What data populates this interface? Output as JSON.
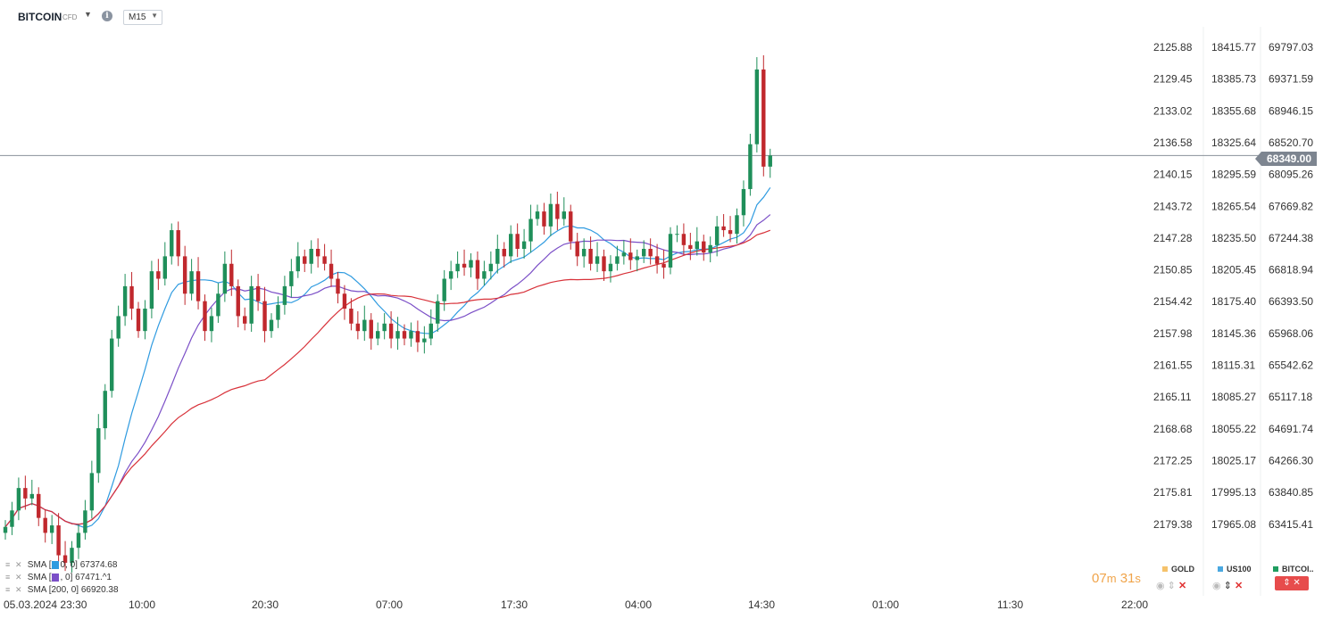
{
  "header": {
    "symbol": "BITCOIN",
    "symbol_type": "CFD",
    "timeframe": "M15"
  },
  "price_axis": {
    "col1": [
      "2125.88",
      "2129.45",
      "2133.02",
      "2136.58",
      "2140.15",
      "2143.72",
      "2147.28",
      "2150.85",
      "2154.42",
      "2157.98",
      "2161.55",
      "2165.11",
      "2168.68",
      "2172.25",
      "2175.81",
      "2179.38"
    ],
    "col2": [
      "18415.77",
      "18385.73",
      "18355.68",
      "18325.64",
      "18295.59",
      "18265.54",
      "18235.50",
      "18205.45",
      "18175.40",
      "18145.36",
      "18115.31",
      "18085.27",
      "18055.22",
      "18025.17",
      "17995.13",
      "17965.08"
    ],
    "col3": [
      "69797.03",
      "69371.59",
      "68946.15",
      "68520.70",
      "68095.26",
      "67669.82",
      "67244.38",
      "66818.94",
      "66393.50",
      "65968.06",
      "65542.62",
      "65117.18",
      "64691.74",
      "64266.30",
      "63840.85",
      "63415.41"
    ],
    "current_price": "68349.00"
  },
  "time_axis": [
    "05.03.2024  23:30",
    "10:00",
    "20:30",
    "07:00",
    "17:30",
    "04:00",
    "14:30",
    "01:00",
    "11:30",
    "22:00"
  ],
  "legend": [
    {
      "label": "SMA",
      "params": "[",
      "value": "67374.68"
    },
    {
      "label": "SMA",
      "params": "[",
      "value": "67471.^1"
    },
    {
      "label": "SMA",
      "params": "[200,  0]",
      "value": "66920.38"
    }
  ],
  "countdown": {
    "min": "07",
    "min_unit": "m",
    "sec": "31",
    "sec_unit": "s"
  },
  "instruments": [
    {
      "name": "GOLD",
      "color": "#f5c26b"
    },
    {
      "name": "US100",
      "color": "#4aa8e0"
    },
    {
      "name": "BITCOI..",
      "color": "#1f9d60"
    }
  ],
  "colors": {
    "up": "#1f8f5a",
    "down": "#c0282d",
    "sma50": "#2f9be0",
    "sma100": "#7b4fc7",
    "sma200": "#d8323a",
    "price_line": "#8a9199"
  },
  "chart_data": {
    "type": "candlestick",
    "price_range": [
      63415.41,
      69797.03
    ],
    "close_path": [
      [
        0,
        63380
      ],
      [
        1,
        63600
      ],
      [
        2,
        63900
      ],
      [
        3,
        63760
      ],
      [
        4,
        63820
      ],
      [
        5,
        63500
      ],
      [
        6,
        63300
      ],
      [
        7,
        63400
      ],
      [
        8,
        63000
      ],
      [
        9,
        62900
      ],
      [
        10,
        63100
      ],
      [
        11,
        63300
      ],
      [
        12,
        63600
      ],
      [
        13,
        64100
      ],
      [
        14,
        64700
      ],
      [
        15,
        65200
      ],
      [
        16,
        65900
      ],
      [
        17,
        66200
      ],
      [
        18,
        66600
      ],
      [
        19,
        66300
      ],
      [
        20,
        66000
      ],
      [
        21,
        66300
      ],
      [
        22,
        66800
      ],
      [
        23,
        66700
      ],
      [
        24,
        67000
      ],
      [
        25,
        67350
      ],
      [
        26,
        67000
      ],
      [
        27,
        66500
      ],
      [
        28,
        66800
      ],
      [
        29,
        66400
      ],
      [
        30,
        66000
      ],
      [
        31,
        66200
      ],
      [
        32,
        66500
      ],
      [
        33,
        66900
      ],
      [
        34,
        66600
      ],
      [
        35,
        66200
      ],
      [
        36,
        66100
      ],
      [
        37,
        66600
      ],
      [
        38,
        66400
      ],
      [
        39,
        66000
      ],
      [
        40,
        66150
      ],
      [
        41,
        66350
      ],
      [
        42,
        66600
      ],
      [
        43,
        66800
      ],
      [
        44,
        67000
      ],
      [
        45,
        66900
      ],
      [
        46,
        67100
      ],
      [
        47,
        67000
      ],
      [
        48,
        66900
      ],
      [
        49,
        66700
      ],
      [
        50,
        66500
      ],
      [
        51,
        66300
      ],
      [
        52,
        66100
      ],
      [
        53,
        66000
      ],
      [
        54,
        66150
      ],
      [
        55,
        65900
      ],
      [
        56,
        66000
      ],
      [
        57,
        66100
      ],
      [
        58,
        65900
      ],
      [
        59,
        66000
      ],
      [
        60,
        65900
      ],
      [
        61,
        66000
      ],
      [
        62,
        65850
      ],
      [
        63,
        65900
      ],
      [
        64,
        66100
      ],
      [
        65,
        66400
      ],
      [
        66,
        66700
      ],
      [
        67,
        66800
      ],
      [
        68,
        66900
      ],
      [
        69,
        66850
      ],
      [
        70,
        66950
      ],
      [
        71,
        66700
      ],
      [
        72,
        66800
      ],
      [
        73,
        66900
      ],
      [
        74,
        67100
      ],
      [
        75,
        67000
      ],
      [
        76,
        67300
      ],
      [
        77,
        67100
      ],
      [
        78,
        67200
      ],
      [
        79,
        67500
      ],
      [
        80,
        67600
      ],
      [
        81,
        67400
      ],
      [
        82,
        67700
      ],
      [
        83,
        67500
      ],
      [
        84,
        67600
      ],
      [
        85,
        67200
      ],
      [
        86,
        67000
      ],
      [
        87,
        67100
      ],
      [
        88,
        66900
      ],
      [
        89,
        67000
      ],
      [
        90,
        66800
      ],
      [
        91,
        66900
      ],
      [
        92,
        67000
      ],
      [
        93,
        67050
      ],
      [
        94,
        66950
      ],
      [
        95,
        67000
      ],
      [
        96,
        67100
      ],
      [
        97,
        67000
      ],
      [
        98,
        66900
      ],
      [
        99,
        66850
      ],
      [
        100,
        67300
      ],
      [
        101,
        67300
      ],
      [
        102,
        67150
      ],
      [
        103,
        67100
      ],
      [
        104,
        67200
      ],
      [
        105,
        67050
      ],
      [
        106,
        67150
      ],
      [
        107,
        67400
      ],
      [
        108,
        67350
      ],
      [
        109,
        67300
      ],
      [
        110,
        67550
      ],
      [
        111,
        67900
      ],
      [
        112,
        68500
      ],
      [
        113,
        69500
      ],
      [
        114,
        68200
      ],
      [
        115,
        68349
      ]
    ]
  }
}
